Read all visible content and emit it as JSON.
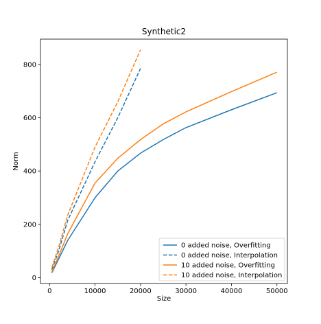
{
  "chart_data": {
    "type": "line",
    "title": "Synthetic2",
    "xlabel": "Size",
    "ylabel": "Norm",
    "xlim": [
      -2000,
      52300
    ],
    "ylim": [
      -22,
      895
    ],
    "xticks": [
      0,
      10000,
      20000,
      30000,
      40000,
      50000
    ],
    "yticks": [
      0,
      200,
      400,
      600,
      800
    ],
    "grid": false,
    "legend_position": "lower-right",
    "series": [
      {
        "name": "0 added noise, Overfitting",
        "style": "solid",
        "color": "#1f77b4",
        "x": [
          500,
          2000,
          4000,
          10000,
          15000,
          20000,
          25000,
          30000,
          40000,
          50000
        ],
        "y": [
          18,
          70,
          140,
          300,
          400,
          467,
          518,
          563,
          630,
          694
        ]
      },
      {
        "name": "0 added noise, Interpolation",
        "style": "dashed",
        "color": "#1f77b4",
        "x": [
          500,
          2000,
          4000,
          10000,
          15000,
          20000
        ],
        "y": [
          30,
          100,
          215,
          435,
          600,
          785
        ]
      },
      {
        "name": "10 added noise, Overfitting",
        "style": "solid",
        "color": "#ff7f0e",
        "x": [
          500,
          2000,
          4000,
          10000,
          15000,
          20000,
          25000,
          30000,
          40000,
          50000
        ],
        "y": [
          22,
          80,
          165,
          355,
          448,
          518,
          577,
          622,
          698,
          771
        ]
      },
      {
        "name": "10 added noise, Interpolation",
        "style": "dashed",
        "color": "#ff7f0e",
        "x": [
          500,
          2000,
          4000,
          10000,
          15000,
          20000
        ],
        "y": [
          38,
          115,
          235,
          490,
          660,
          855
        ]
      }
    ]
  }
}
